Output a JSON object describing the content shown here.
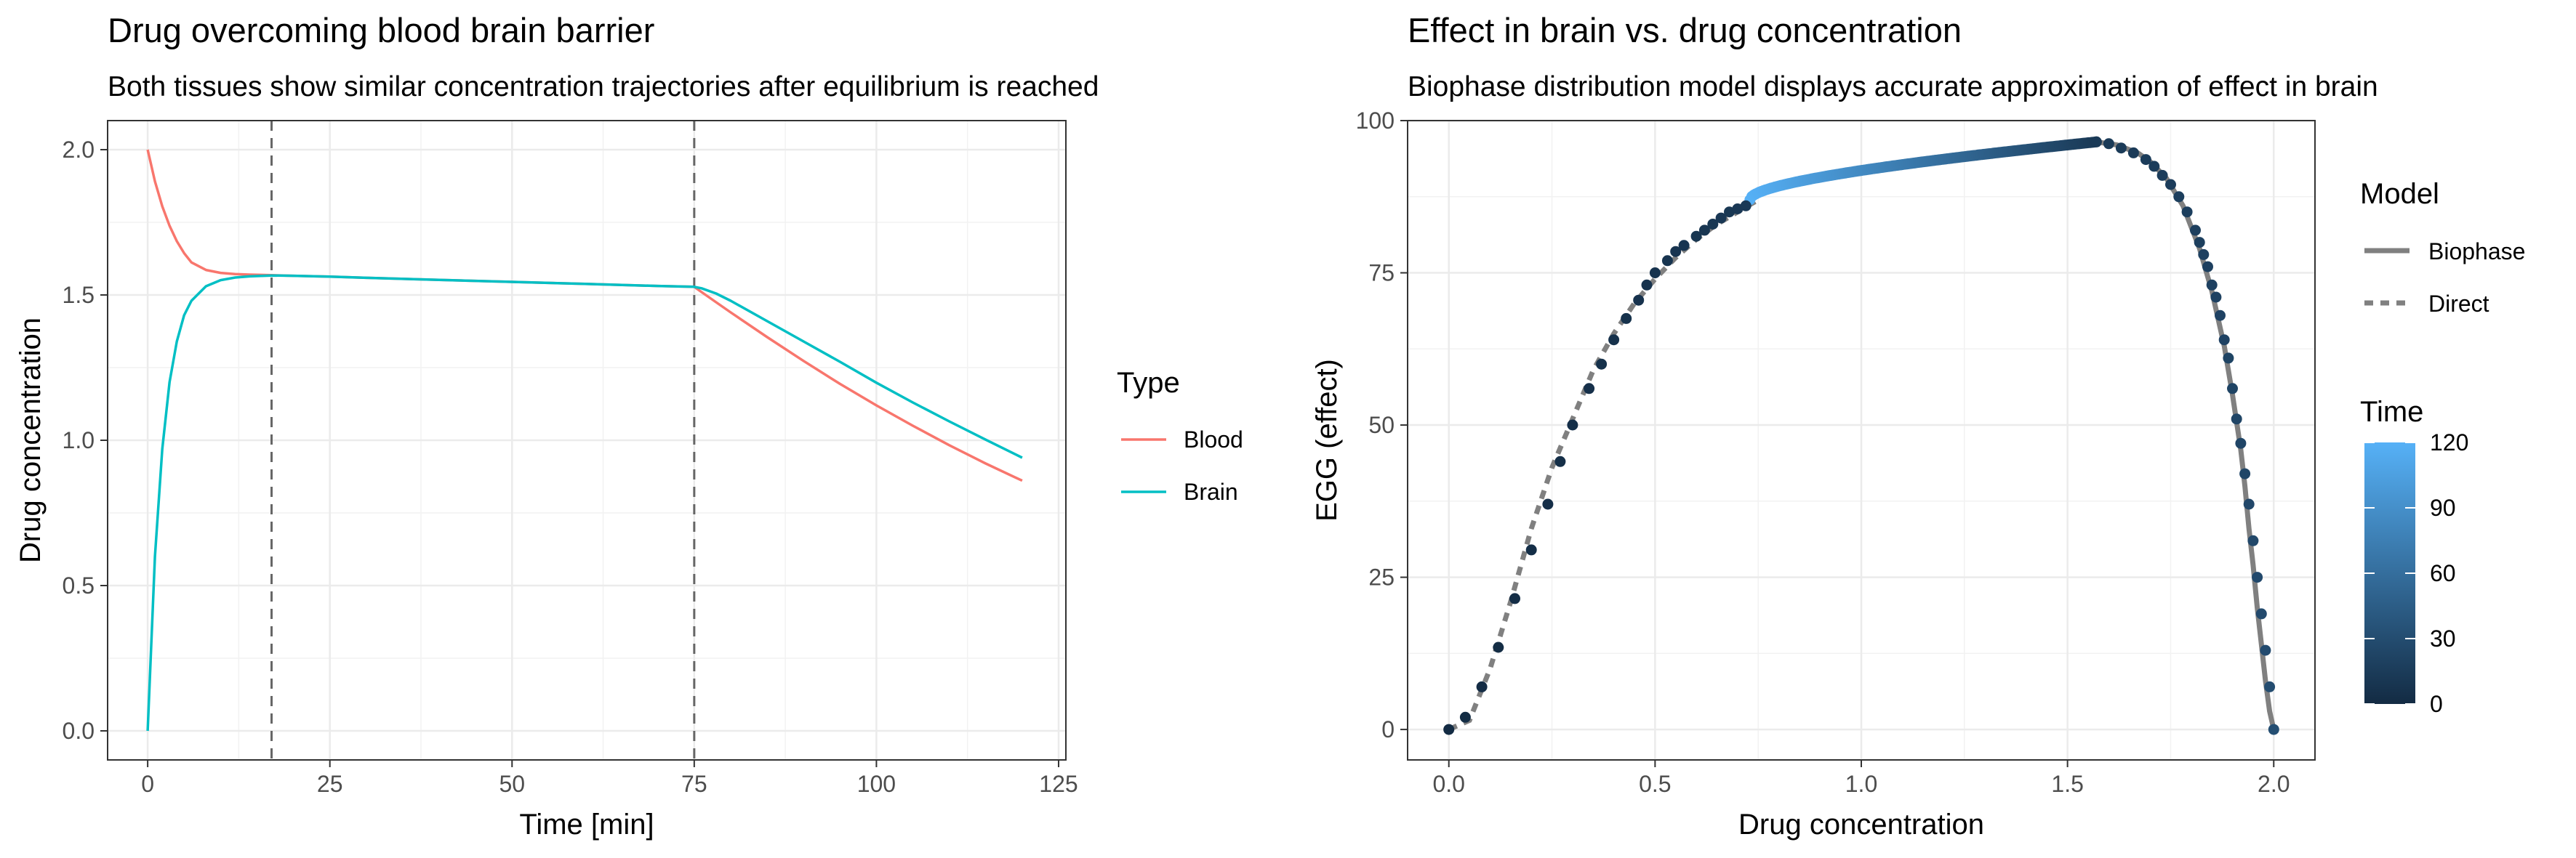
{
  "chart_data": [
    {
      "type": "line",
      "title": "Drug overcoming blood brain barrier",
      "subtitle": "Both tissues show similar concentration trajectories after equilibrium is reached",
      "xlabel": "Time [min]",
      "ylabel": "Drug concentration",
      "xlim": [
        -5.5,
        126
      ],
      "ylim": [
        -0.1,
        2.1
      ],
      "x_ticks": [
        0,
        25,
        50,
        75,
        100,
        125
      ],
      "y_ticks": [
        0.0,
        0.5,
        1.0,
        1.5,
        2.0
      ],
      "x_tick_labels": [
        "0",
        "25",
        "50",
        "75",
        "100",
        "125"
      ],
      "y_tick_labels": [
        "0.0",
        "0.5",
        "1.0",
        "1.5",
        "2.0"
      ],
      "grid": true,
      "vlines": [
        17,
        75
      ],
      "vline_style": "dashed",
      "legend": {
        "title": "Type",
        "position": "right"
      },
      "x": [
        0,
        1,
        2,
        3,
        4,
        5,
        6,
        8,
        10,
        12,
        14,
        17,
        20,
        25,
        30,
        40,
        50,
        60,
        70,
        75,
        76,
        78,
        80,
        85,
        90,
        95,
        100,
        105,
        110,
        115,
        120
      ],
      "series": [
        {
          "name": "Blood",
          "color": "#F8766D",
          "values": [
            2.0,
            1.891,
            1.805,
            1.738,
            1.685,
            1.644,
            1.612,
            1.586,
            1.576,
            1.572,
            1.57,
            1.568,
            1.566,
            1.563,
            1.559,
            1.552,
            1.545,
            1.538,
            1.531,
            1.528,
            1.51,
            1.475,
            1.44,
            1.355,
            1.273,
            1.194,
            1.12,
            1.05,
            0.983,
            0.92,
            0.861
          ]
        },
        {
          "name": "Brain",
          "color": "#00BFC4",
          "values": [
            0.0,
            0.6,
            0.97,
            1.2,
            1.34,
            1.43,
            1.48,
            1.53,
            1.551,
            1.56,
            1.564,
            1.567,
            1.566,
            1.563,
            1.559,
            1.552,
            1.545,
            1.538,
            1.531,
            1.528,
            1.523,
            1.505,
            1.48,
            1.41,
            1.34,
            1.27,
            1.198,
            1.13,
            1.065,
            1.002,
            0.94
          ]
        }
      ]
    },
    {
      "type": "scatter",
      "title": "Effect in brain vs. drug concentration",
      "subtitle": "Biophase distribution model displays accurate approximation of effect in brain",
      "xlabel": "Drug concentration",
      "ylabel": "EGG (effect)",
      "xlim": [
        -0.1,
        2.1
      ],
      "ylim": [
        -5,
        100
      ],
      "x_ticks": [
        0.0,
        0.5,
        1.0,
        1.5,
        2.0
      ],
      "y_ticks": [
        0,
        25,
        50,
        75,
        100
      ],
      "x_tick_labels": [
        "0.0",
        "0.5",
        "1.0",
        "1.5",
        "2.0"
      ],
      "y_tick_labels": [
        "0",
        "25",
        "50",
        "75",
        "100"
      ],
      "grid": true,
      "legend_model": {
        "title": "Model",
        "position": "right",
        "entries": [
          {
            "name": "Biophase",
            "style": "solid"
          },
          {
            "name": "Direct",
            "style": "dashed"
          }
        ]
      },
      "legend_time": {
        "title": "Time",
        "ticks": [
          0,
          30,
          60,
          90,
          120
        ],
        "color_low": "#132B43",
        "color_high": "#56B1F7"
      },
      "line_color": "#808080",
      "direct_curve": {
        "x": [
          0.0,
          0.05,
          0.1,
          0.15,
          0.2,
          0.25,
          0.3,
          0.35,
          0.4,
          0.45,
          0.5,
          0.55,
          0.6,
          0.65,
          0.7,
          0.75
        ],
        "y": [
          0,
          1.5,
          10,
          21,
          33,
          43,
          51,
          59,
          65,
          70,
          74,
          77.5,
          80.5,
          83,
          85,
          87
        ]
      },
      "biophase_curve": {
        "x": [
          1.57,
          1.62,
          1.67,
          1.7,
          1.74,
          1.78,
          1.82,
          1.85,
          1.88,
          1.9,
          1.92,
          1.93,
          1.94,
          1.95,
          1.96,
          1.97,
          1.98,
          1.99,
          2.0
        ],
        "y": [
          96.5,
          96,
          94.7,
          93.3,
          90.5,
          86,
          79,
          72,
          63,
          55,
          46,
          40,
          33,
          27,
          20,
          14,
          8,
          3,
          0
        ]
      },
      "points_rising": {
        "x": [
          0.0,
          0.04,
          0.08,
          0.12,
          0.16,
          0.2,
          0.24,
          0.27,
          0.3,
          0.34,
          0.37,
          0.4,
          0.43,
          0.46,
          0.48,
          0.5,
          0.53,
          0.55,
          0.57,
          0.6,
          0.62,
          0.64,
          0.66,
          0.68,
          0.7,
          0.72
        ],
        "y": [
          0,
          2,
          7,
          13.5,
          21.5,
          29.5,
          37,
          44,
          50,
          56,
          60,
          64,
          67.5,
          70.5,
          73,
          75,
          77,
          78.5,
          79.5,
          81,
          82,
          83,
          84,
          85,
          85.5,
          86
        ],
        "time": [
          0,
          0.5,
          1,
          1.5,
          2,
          2.5,
          3,
          3.5,
          4,
          4.5,
          5,
          5.5,
          6,
          6.5,
          7,
          7.5,
          8,
          8.5,
          9,
          9.5,
          10,
          10.5,
          11,
          11.5,
          12,
          12.5
        ]
      },
      "points_plateau": {
        "x_start": 0.73,
        "x_end": 1.57,
        "y_start": 87,
        "y_end": 96.5,
        "time_start": 120,
        "time_end": 13,
        "count": 180
      },
      "points_falling": {
        "x": [
          1.57,
          1.6,
          1.63,
          1.66,
          1.69,
          1.71,
          1.73,
          1.75,
          1.77,
          1.79,
          1.81,
          1.82,
          1.83,
          1.84,
          1.85,
          1.86,
          1.87,
          1.88,
          1.89,
          1.9,
          1.91,
          1.92,
          1.93,
          1.94,
          1.95,
          1.96,
          1.97,
          1.98,
          1.99,
          2.0
        ],
        "y": [
          96.5,
          96.2,
          95.5,
          94.7,
          93.6,
          92.5,
          91,
          89.5,
          87.5,
          85,
          82,
          80,
          78,
          76,
          73,
          71,
          68,
          64,
          61,
          56,
          51,
          47,
          42,
          37,
          31,
          25,
          19,
          13,
          7,
          0
        ],
        "time": [
          13,
          13,
          14,
          14,
          15,
          15,
          16,
          16,
          17,
          17,
          18,
          18,
          19,
          19,
          20,
          20,
          21,
          21,
          22,
          22,
          23,
          23,
          24,
          25,
          26,
          27,
          28,
          29,
          30,
          31
        ]
      }
    }
  ]
}
